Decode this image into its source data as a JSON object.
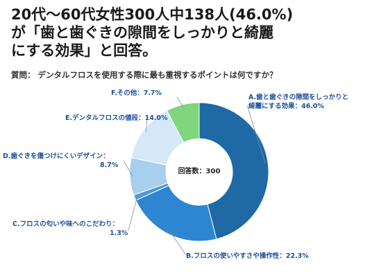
{
  "headline": [
    "20代〜60代女性300人中138人(46.0%)",
    "が「歯と歯ぐきの隙間をしっかりと綺麗",
    "にする効果」と回答。"
  ],
  "question": "質問： デンタルフロスを使用する際に最も重視するポイントは何ですか？",
  "chart_data": {
    "type": "pie",
    "center_label": "回答数：300",
    "slices": [
      {
        "label": "A.歯と歯ぐきの隙間をしっかりと綺麗にする効果",
        "label_lines": [
          "A.歯と歯ぐきの隙間をしっかりと",
          "綺麗にする効果：46.0%"
        ],
        "value": 46.0,
        "color": "#1f6aa5"
      },
      {
        "label": "B.フロスの使いやすさや操作性",
        "label_lines": [
          "B.フロスの使いやすさや操作性：22.3%"
        ],
        "value": 22.3,
        "color": "#2d86cf"
      },
      {
        "label": "C.フロスの匂いや味へのこだわり",
        "label_lines": [
          "C.フロスの匂いや味へのこだわり：",
          "1.3%"
        ],
        "value": 1.3,
        "color": "#4e9bd8"
      },
      {
        "label": "D.歯ぐきを傷つけにくいデザイン",
        "label_lines": [
          "D.歯ぐきを傷つけにくいデザイン：",
          "8.7%"
        ],
        "value": 8.7,
        "color": "#a9cfee"
      },
      {
        "label": "E.デンタルフロスの値段",
        "label_lines": [
          "E.デンタルフロスの値段：14.0%"
        ],
        "value": 14.0,
        "color": "#d4e8f8"
      },
      {
        "label": "F.その他",
        "label_lines": [
          "F.その他：7.7%"
        ],
        "value": 7.7,
        "color": "#7fd67c"
      }
    ]
  }
}
